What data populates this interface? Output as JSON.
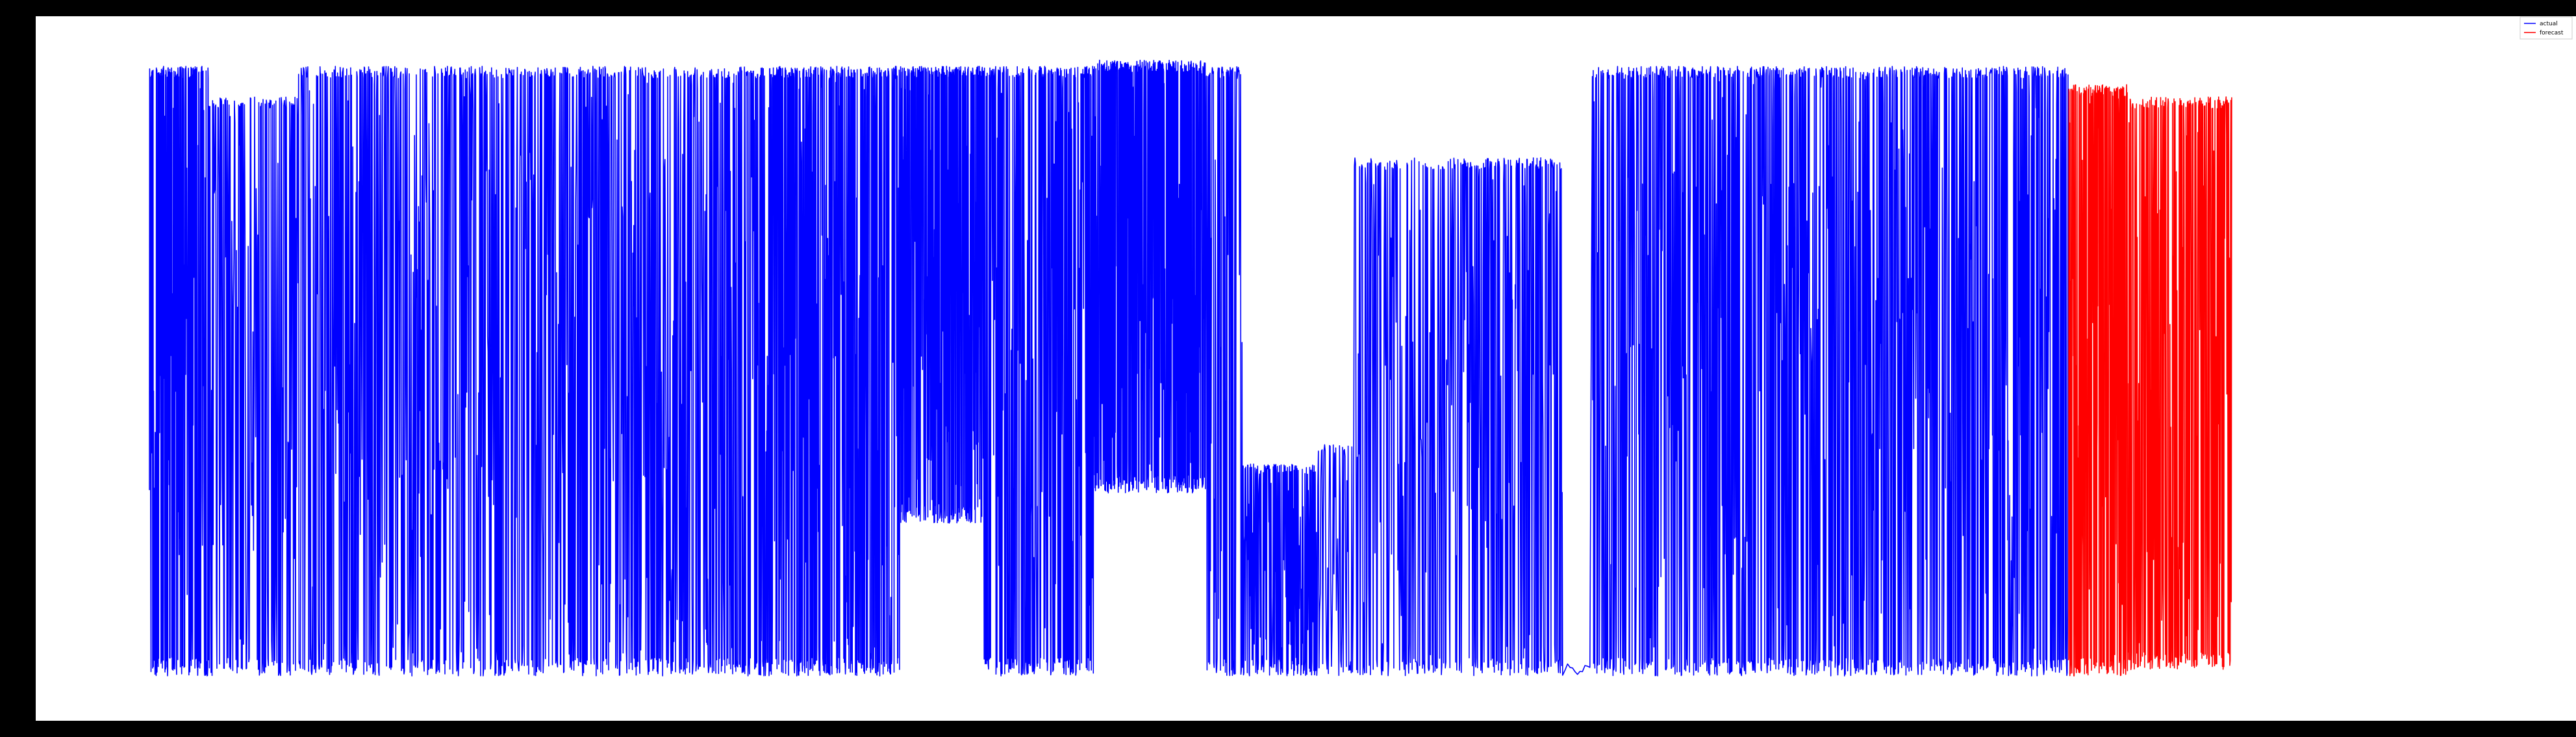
{
  "chart_data": {
    "type": "line",
    "title": "",
    "xlabel": "",
    "ylabel": "",
    "grid": false,
    "legend_placement": "top-right",
    "background": "#ffffff",
    "figure_background": "#000000",
    "xlim": [
      0,
      3100
    ],
    "ylim": [
      0,
      1
    ],
    "series": [
      {
        "name": "actual",
        "color": "#0000ff",
        "x_range": [
          0,
          2580
        ],
        "segments": [
          {
            "x": [
              0,
              80
            ],
            "low": 0.0,
            "high": 1.0,
            "density": 3.2
          },
          {
            "x": [
              80,
              200
            ],
            "low": 0.0,
            "high": 0.95,
            "density": 1.4
          },
          {
            "x": [
              200,
              380
            ],
            "low": 0.0,
            "high": 1.0,
            "density": 1.7
          },
          {
            "x": [
              380,
              520
            ],
            "low": 0.0,
            "high": 1.0,
            "density": 1.5
          },
          {
            "x": [
              520,
              680
            ],
            "low": 0.0,
            "high": 1.0,
            "density": 1.6
          },
          {
            "x": [
              680,
              820
            ],
            "low": 0.0,
            "high": 1.0,
            "density": 1.9
          },
          {
            "x": [
              820,
              1010
            ],
            "low": 0.0,
            "high": 1.0,
            "density": 2.6
          },
          {
            "x": [
              1010,
              1120
            ],
            "low": 0.25,
            "high": 1.0,
            "density": 3.5
          },
          {
            "x": [
              1120,
              1270
            ],
            "low": 0.0,
            "high": 1.0,
            "density": 2.2
          },
          {
            "x": [
              1270,
              1420
            ],
            "low": 0.3,
            "high": 1.01,
            "density": 3.6
          },
          {
            "x": [
              1420,
              1470
            ],
            "low": 0.0,
            "high": 1.0,
            "density": 2.0
          },
          {
            "x": [
              1470,
              1570
            ],
            "low": 0.0,
            "high": 0.35,
            "density": 2.0
          },
          {
            "x": [
              1570,
              1620
            ],
            "low": 0.0,
            "high": 0.38,
            "density": 1.2
          },
          {
            "x": [
              1620,
              1760
            ],
            "low": 0.0,
            "high": 0.85,
            "density": 1.3
          },
          {
            "x": [
              1760,
              1900
            ],
            "low": 0.0,
            "high": 0.85,
            "density": 1.6
          },
          {
            "x": [
              1900,
              1940
            ],
            "low": 0.0,
            "high": 0.02,
            "density": 0.3
          },
          {
            "x": [
              1940,
              2200
            ],
            "low": 0.0,
            "high": 1.0,
            "density": 1.8
          },
          {
            "x": [
              2200,
              2580
            ],
            "low": 0.0,
            "high": 1.0,
            "density": 1.9
          }
        ]
      },
      {
        "name": "forecast",
        "color": "#ff0000",
        "x_range": [
          2580,
          2800
        ],
        "segments": [
          {
            "x": [
              2580,
              2660
            ],
            "low": 0.0,
            "high": 0.97,
            "density": 3.0
          },
          {
            "x": [
              2660,
              2800
            ],
            "low": 0.01,
            "high": 0.95,
            "density": 2.0
          }
        ]
      }
    ]
  }
}
